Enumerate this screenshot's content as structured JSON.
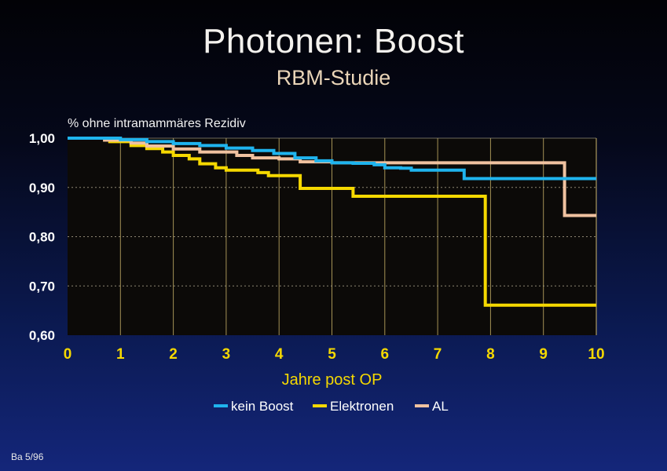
{
  "slide": {
    "title": "Photonen: Boost",
    "subtitle": "RBM-Studie",
    "footer": "Ba 5/96"
  },
  "colors": {
    "plot_background": "#0c0a08",
    "x_tick_labels": "#f5d800",
    "x_axis_label": "#f5d800",
    "y_tick_labels": "#ffffff",
    "vertical_grid": "#d8c070",
    "horizontal_grid": "#b0a890"
  },
  "chart_data": {
    "type": "line",
    "step": true,
    "title": "",
    "ylabel": "% ohne intramammäres Rezidiv",
    "xlabel": "Jahre post OP",
    "xlim": [
      0,
      10
    ],
    "ylim": [
      0.6,
      1.0
    ],
    "x_ticks": [
      0,
      1,
      2,
      3,
      4,
      5,
      6,
      7,
      8,
      9,
      10
    ],
    "x_tick_labels": [
      "0",
      "1",
      "2",
      "3",
      "4",
      "5",
      "6",
      "7",
      "8",
      "9",
      "10"
    ],
    "y_ticks": [
      0.6,
      0.7,
      0.8,
      0.9,
      1.0
    ],
    "y_tick_labels": [
      "0,60",
      "0,70",
      "0,80",
      "0,90",
      "1,00"
    ],
    "grid": true,
    "legend_position": "bottom",
    "series": [
      {
        "name": "kein Boost",
        "color": "#1fb4ee",
        "points": [
          [
            0,
            1.0
          ],
          [
            0.6,
            1.0
          ],
          [
            1.0,
            0.997
          ],
          [
            1.5,
            0.993
          ],
          [
            2.0,
            0.989
          ],
          [
            2.5,
            0.985
          ],
          [
            3.0,
            0.98
          ],
          [
            3.5,
            0.975
          ],
          [
            3.9,
            0.969
          ],
          [
            4.3,
            0.96
          ],
          [
            4.7,
            0.954
          ],
          [
            5.0,
            0.95
          ],
          [
            5.4,
            0.949
          ],
          [
            5.8,
            0.946
          ],
          [
            6.0,
            0.94
          ],
          [
            6.3,
            0.939
          ],
          [
            6.5,
            0.935
          ],
          [
            7.2,
            0.935
          ],
          [
            7.5,
            0.918
          ],
          [
            10.0,
            0.918
          ]
        ]
      },
      {
        "name": "Elektronen",
        "color": "#f5d800",
        "points": [
          [
            0,
            1.0
          ],
          [
            0.8,
            0.993
          ],
          [
            1.2,
            0.985
          ],
          [
            1.5,
            0.979
          ],
          [
            1.8,
            0.972
          ],
          [
            2.0,
            0.965
          ],
          [
            2.3,
            0.958
          ],
          [
            2.5,
            0.948
          ],
          [
            2.8,
            0.94
          ],
          [
            3.0,
            0.935
          ],
          [
            3.6,
            0.93
          ],
          [
            3.8,
            0.924
          ],
          [
            4.3,
            0.924
          ],
          [
            4.4,
            0.898
          ],
          [
            5.3,
            0.898
          ],
          [
            5.4,
            0.882
          ],
          [
            7.8,
            0.882
          ],
          [
            7.9,
            0.661
          ],
          [
            10.0,
            0.661
          ]
        ]
      },
      {
        "name": "AL",
        "color": "#f0c2a0",
        "points": [
          [
            0,
            1.0
          ],
          [
            0.7,
            0.996
          ],
          [
            1.2,
            0.99
          ],
          [
            1.5,
            0.984
          ],
          [
            2.0,
            0.978
          ],
          [
            2.5,
            0.972
          ],
          [
            3.2,
            0.965
          ],
          [
            3.5,
            0.96
          ],
          [
            4.0,
            0.958
          ],
          [
            4.4,
            0.952
          ],
          [
            5.0,
            0.95
          ],
          [
            9.3,
            0.95
          ],
          [
            9.4,
            0.843
          ],
          [
            10.0,
            0.843
          ]
        ]
      }
    ]
  }
}
